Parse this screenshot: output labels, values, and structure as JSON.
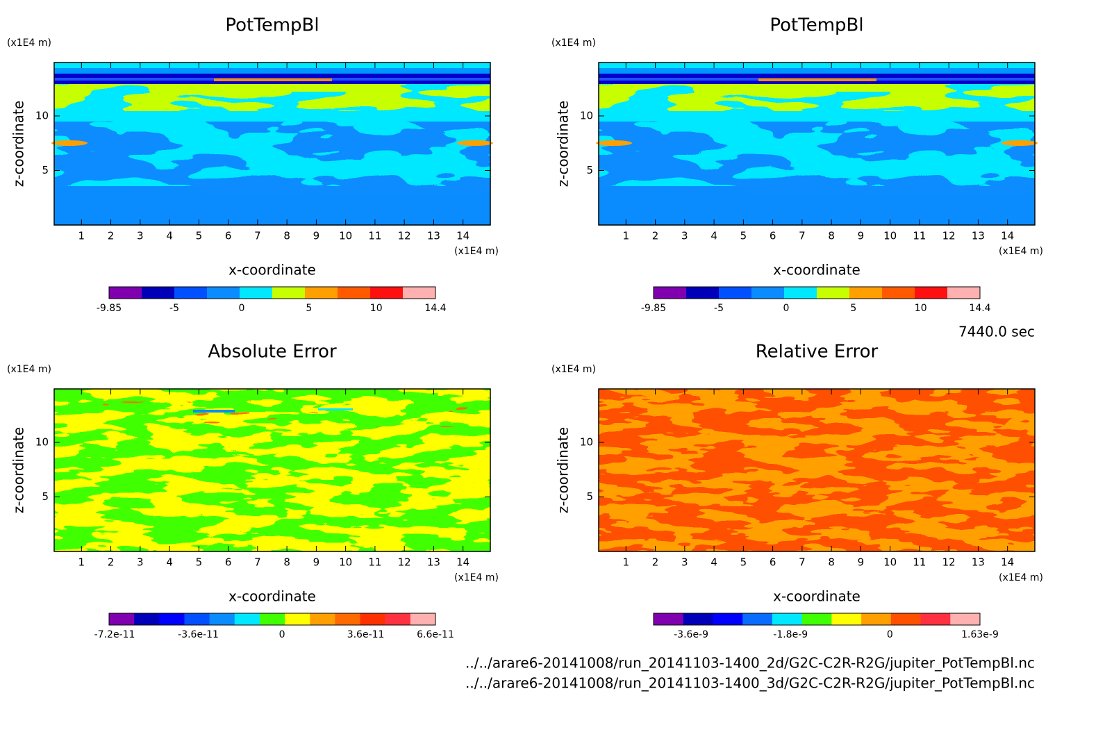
{
  "chart_data": [
    {
      "type": "contour",
      "title": "PotTempBl",
      "x_label": "x-coordinate",
      "y_label": "z-coordinate",
      "x_unit": "(x1E4 m)",
      "y_unit": "(x1E4 m)",
      "xlim": [
        0.07,
        14.93
      ],
      "xticks": [
        1,
        2,
        3,
        4,
        5,
        6,
        7,
        8,
        9,
        10,
        11,
        12,
        13,
        14
      ],
      "ylim": [
        0,
        14.9
      ],
      "yticks": [
        5,
        10
      ],
      "colorbar": {
        "lim": [
          -9.85,
          14.4
        ],
        "ticks": [
          -9.85,
          -5,
          0,
          5,
          10,
          14.4
        ],
        "colors": [
          "#8000b0",
          "#0000b8",
          "#0050ff",
          "#0a8cff",
          "#00e8ff",
          "#c8ff00",
          "#ffa000",
          "#ff5a00",
          "#ff1010",
          "#ffb0b0"
        ]
      }
    },
    {
      "type": "contour",
      "title": "PotTempBl",
      "x_label": "x-coordinate",
      "y_label": "z-coordinate",
      "x_unit": "(x1E4 m)",
      "y_unit": "(x1E4 m)",
      "xlim": [
        0.07,
        14.93
      ],
      "xticks": [
        1,
        2,
        3,
        4,
        5,
        6,
        7,
        8,
        9,
        10,
        11,
        12,
        13,
        14
      ],
      "ylim": [
        0,
        14.9
      ],
      "yticks": [
        5,
        10
      ],
      "colorbar": {
        "lim": [
          -9.85,
          14.4
        ],
        "ticks": [
          -9.85,
          -5,
          0,
          5,
          10,
          14.4
        ],
        "colors": [
          "#8000b0",
          "#0000b8",
          "#0050ff",
          "#0a8cff",
          "#00e8ff",
          "#c8ff00",
          "#ffa000",
          "#ff5a00",
          "#ff1010",
          "#ffb0b0"
        ]
      }
    },
    {
      "type": "contour",
      "title": "Absolute Error",
      "x_label": "x-coordinate",
      "y_label": "z-coordinate",
      "x_unit": "(x1E4 m)",
      "y_unit": "(x1E4 m)",
      "xlim": [
        0.07,
        14.93
      ],
      "xticks": [
        1,
        2,
        3,
        4,
        5,
        6,
        7,
        8,
        9,
        10,
        11,
        12,
        13,
        14
      ],
      "ylim": [
        0,
        14.9
      ],
      "yticks": [
        5,
        10
      ],
      "colorbar": {
        "lim": [
          -7.44e-11,
          6.6e-11
        ],
        "ticks": [
          -7.2e-11,
          -3.6e-11,
          0,
          3.6e-11,
          6.6e-11
        ],
        "colors": [
          "#8000b0",
          "#0000b8",
          "#0000ff",
          "#0050ff",
          "#0a8cff",
          "#00e8ff",
          "#40ff00",
          "#ffff00",
          "#ffa000",
          "#ff6a00",
          "#ff3000",
          "#ff3040",
          "#ffb0b0"
        ]
      }
    },
    {
      "type": "contour",
      "title": "Relative Error",
      "x_label": "x-coordinate",
      "y_label": "z-coordinate",
      "x_unit": "(x1E4 m)",
      "y_unit": "(x1E4 m)",
      "xlim": [
        0.07,
        14.93
      ],
      "xticks": [
        1,
        2,
        3,
        4,
        5,
        6,
        7,
        8,
        9,
        10,
        11,
        12,
        13,
        14
      ],
      "ylim": [
        0,
        14.9
      ],
      "yticks": [
        5,
        10
      ],
      "colorbar": {
        "lim": [
          -4.28e-09,
          1.63e-09
        ],
        "ticks": [
          -3.6e-09,
          -1.8e-09,
          0,
          1.63e-09
        ],
        "colors": [
          "#8000b0",
          "#0000b8",
          "#0000ff",
          "#0a6cff",
          "#00e8ff",
          "#40ff00",
          "#ffff00",
          "#ffa000",
          "#ff5000",
          "#ff3040",
          "#ffb0b0"
        ]
      }
    }
  ],
  "footer": {
    "time": "7440.0 sec",
    "files": [
      "../../arare6-20141008/run_20141103-1400_2d/G2C-C2R-R2G/jupiter_PotTempBl.nc",
      "../../arare6-20141008/run_20141103-1400_3d/G2C-C2R-R2G/jupiter_PotTempBl.nc"
    ]
  }
}
